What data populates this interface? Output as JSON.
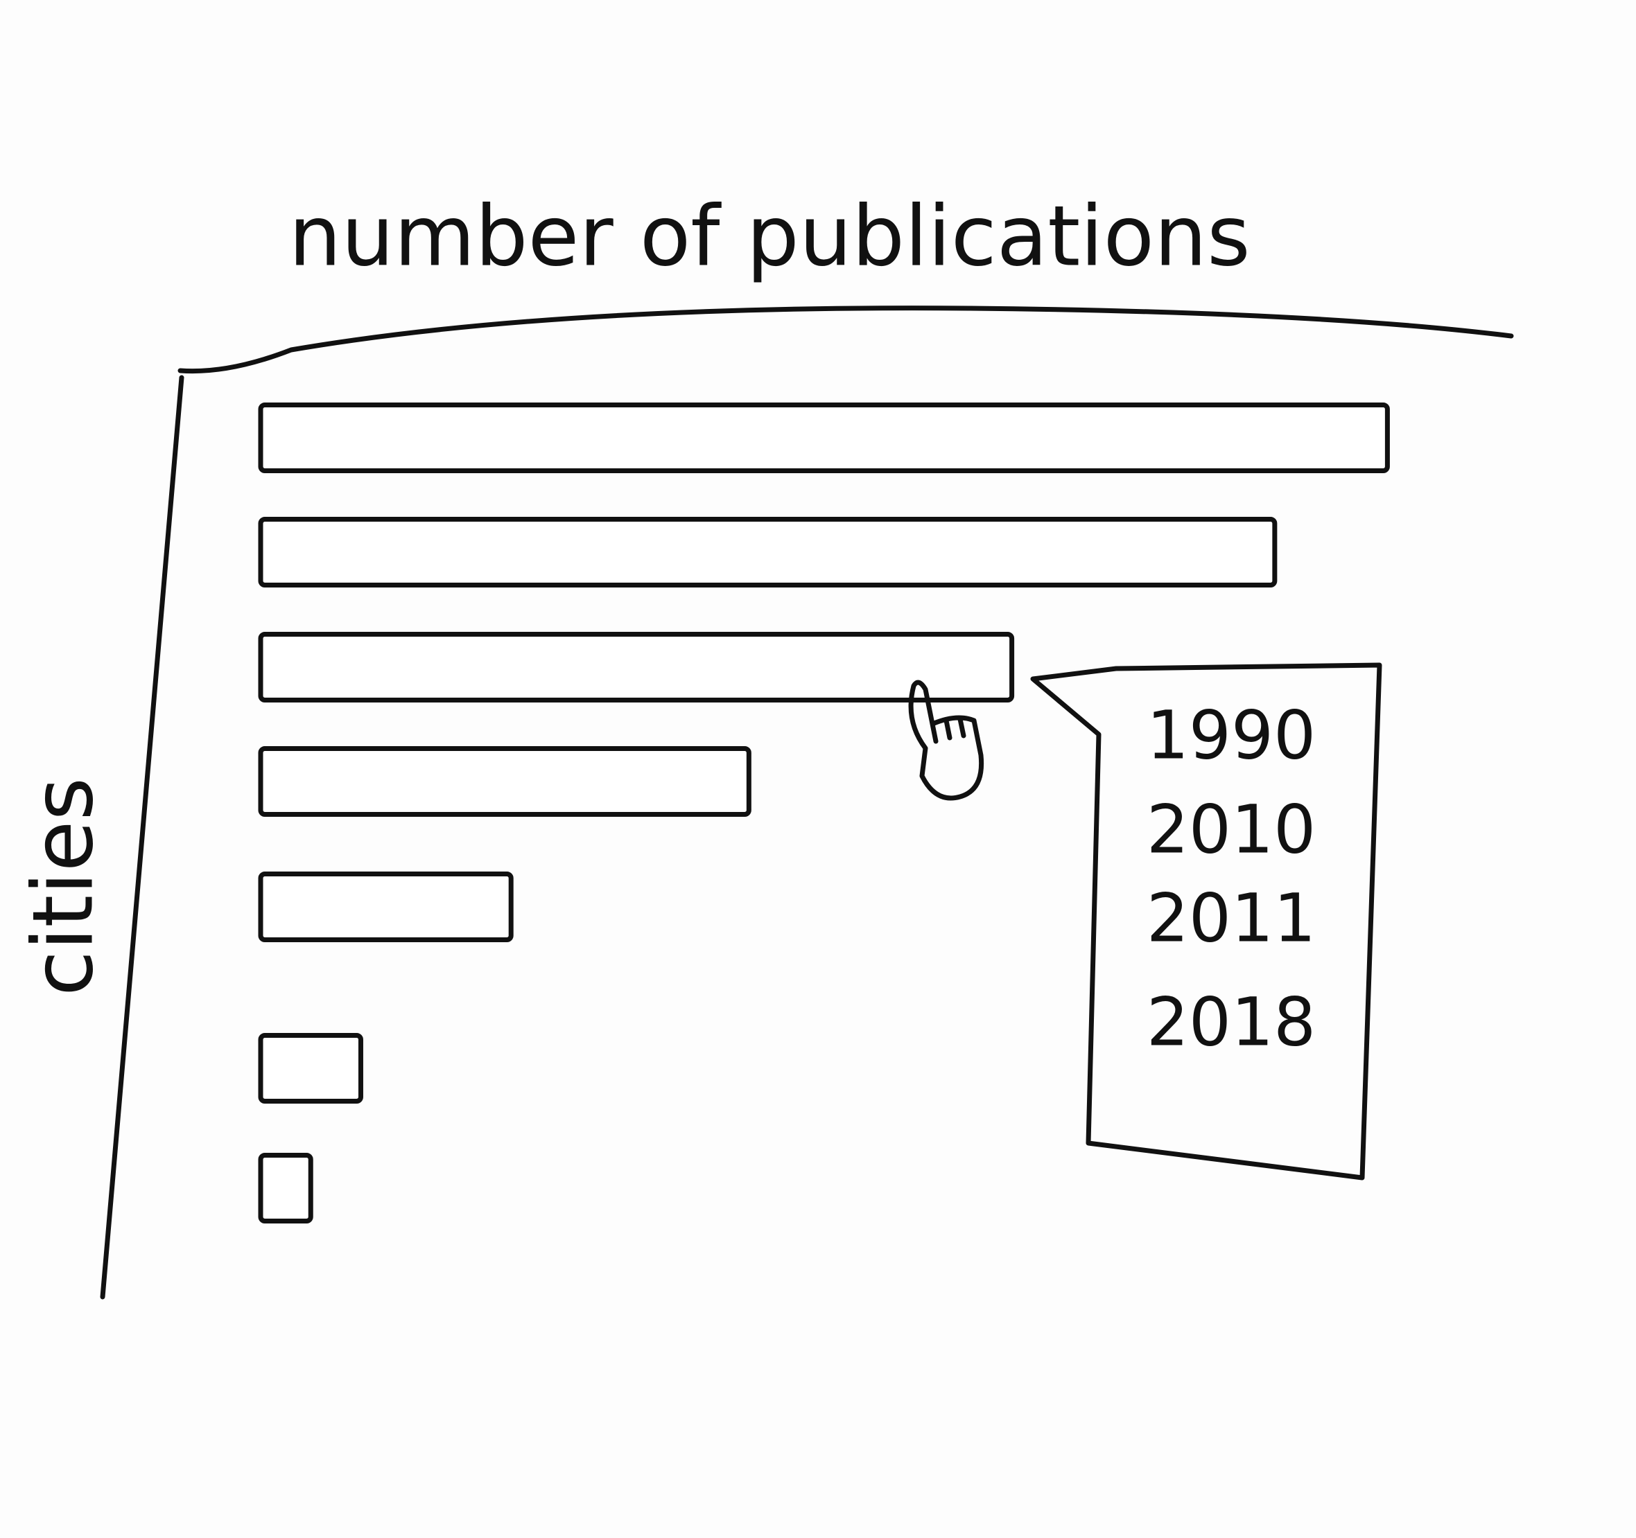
{
  "chart_data": {
    "type": "bar",
    "orientation": "horizontal",
    "x_label": "number of publications",
    "y_label": "cities",
    "categories": [
      null,
      null,
      null,
      null,
      null,
      null,
      null
    ],
    "values": [
      90,
      81,
      60,
      39,
      20,
      8,
      4
    ],
    "xlim": [
      0,
      100
    ],
    "color": "#ffffff",
    "tooltip": [
      "1990",
      "2010",
      "2011",
      "2018"
    ]
  }
}
